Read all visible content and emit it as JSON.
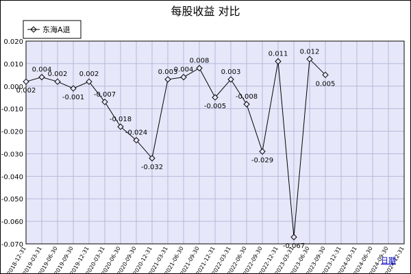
{
  "chart_data": {
    "type": "line",
    "title": "每股收益  对比",
    "xlabel": "日期",
    "ylabel": "",
    "ylim": [
      -0.07,
      0.02
    ],
    "yticks": [
      "0.020",
      "0.010",
      "0.000",
      "-0.010",
      "-0.020",
      "-0.030",
      "-0.040",
      "-0.050",
      "-0.060",
      "-0.070"
    ],
    "grid": true,
    "legend_position": "top-left",
    "categories": [
      "2018-12-31",
      "2019-03-31",
      "2019-06-30",
      "2019-09-30",
      "2019-12-31",
      "2020-03-31",
      "2020-06-30",
      "2020-09-30",
      "2020-12-31",
      "2021-03-31",
      "2021-06-30",
      "2021-09-30",
      "2021-12-31",
      "2022-03-31",
      "2022-06-30",
      "2022-09-30",
      "2022-12-31",
      "2023-03-31",
      "2023-06-30",
      "2023-09-30",
      "2023-12-31",
      "2024-03-31",
      "2024-06-30",
      "2024-09-30",
      "2024-12-31"
    ],
    "series": [
      {
        "name": "东海A退",
        "color": "#000000",
        "points": [
          {
            "x": 0,
            "y": 0.002,
            "label": "0.002"
          },
          {
            "x": 1,
            "y": 0.004,
            "label": "0.004"
          },
          {
            "x": 2,
            "y": 0.002,
            "label": "0.002"
          },
          {
            "x": 3,
            "y": -0.001,
            "label": "-0.001"
          },
          {
            "x": 4,
            "y": 0.002,
            "label": "0.002"
          },
          {
            "x": 5,
            "y": -0.007,
            "label": "-0.007"
          },
          {
            "x": 6,
            "y": -0.018,
            "label": "-0.018"
          },
          {
            "x": 7,
            "y": -0.024,
            "label": "-0.024"
          },
          {
            "x": 8,
            "y": -0.032,
            "label": "-0.032"
          },
          {
            "x": 9,
            "y": 0.003,
            "label": "0.003"
          },
          {
            "x": 10,
            "y": 0.004,
            "label": "0.004"
          },
          {
            "x": 11,
            "y": 0.008,
            "label": "0.008"
          },
          {
            "x": 12,
            "y": -0.005,
            "label": "-0.005"
          },
          {
            "x": 13,
            "y": 0.003,
            "label": "0.003"
          },
          {
            "x": 14,
            "y": -0.008,
            "label": "-0.008"
          },
          {
            "x": 15,
            "y": -0.029,
            "label": "-0.029"
          },
          {
            "x": 16,
            "y": 0.011,
            "label": "0.011"
          },
          {
            "x": 17,
            "y": -0.067,
            "label": "-0.067"
          },
          {
            "x": 18,
            "y": 0.012,
            "label": "0.012"
          },
          {
            "x": 19,
            "y": 0.005,
            "label": "0.005"
          }
        ]
      }
    ],
    "colors": {
      "plot_background": "#e6e8fa",
      "gridline": "#b4b8d8",
      "frame": "#000000"
    }
  }
}
